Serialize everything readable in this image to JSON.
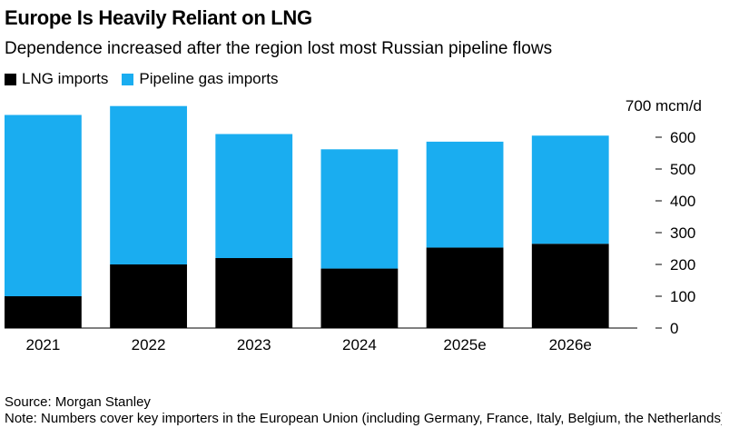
{
  "title": "Europe Is Heavily Reliant on LNG",
  "subtitle": "Dependence increased after the region lost most Russian pipeline flows",
  "legend": [
    {
      "label": "LNG imports",
      "color": "#000000"
    },
    {
      "label": "Pipeline gas imports",
      "color": "#1aadf0"
    }
  ],
  "chart_data": {
    "type": "bar",
    "stacked": true,
    "categories": [
      "2021",
      "2022",
      "2023",
      "2024",
      "2025e",
      "2026e"
    ],
    "series": [
      {
        "name": "LNG imports",
        "color": "#000000",
        "values": [
          100,
          200,
          220,
          187,
          253,
          265
        ]
      },
      {
        "name": "Pipeline gas imports",
        "color": "#1aadf0",
        "values": [
          570,
          498,
          390,
          375,
          333,
          340
        ]
      }
    ],
    "ylim": [
      0,
      700
    ],
    "yticks": [
      0,
      100,
      200,
      300,
      400,
      500,
      600,
      700
    ],
    "ytick_labels": [
      "0",
      "100",
      "200",
      "300",
      "400",
      "500",
      "600",
      "700 mcm/d"
    ],
    "ylabel": "mcm/d",
    "yaxis_side": "right",
    "grid": false
  },
  "source": "Source: Morgan Stanley",
  "note": "Note: Numbers cover key importers in the European Union (including Germany, France, Italy, Belgium, the Netherlands)"
}
